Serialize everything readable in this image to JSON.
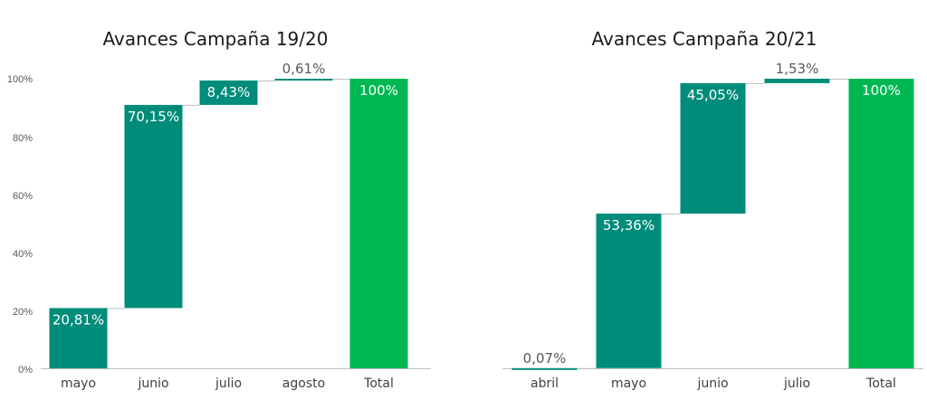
{
  "colors": {
    "bar": "#008C7A",
    "total": "#00B852",
    "axis": "#bfbfbf",
    "connector": "#bfbfbf",
    "label_dark": "#595959",
    "label_light": "#ffffff"
  },
  "chart_data": [
    {
      "type": "waterfall",
      "title": "Avances Campaña 19/20",
      "categories": [
        "mayo",
        "junio",
        "julio",
        "agosto",
        "Total"
      ],
      "values": [
        20.81,
        70.15,
        8.43,
        0.61,
        100
      ],
      "labels": [
        "20,81%",
        "70,15%",
        "8,43%",
        "0,61%",
        "100%"
      ],
      "is_total": [
        false,
        false,
        false,
        false,
        true
      ],
      "y_ticks": [
        "0%",
        "20%",
        "40%",
        "60%",
        "80%",
        "100%"
      ],
      "ylim": [
        0,
        100
      ],
      "grid": false
    },
    {
      "type": "waterfall",
      "title": "Avances Campaña 20/21",
      "categories": [
        "abril",
        "mayo",
        "junio",
        "julio",
        "Total"
      ],
      "values": [
        0.07,
        53.36,
        45.05,
        1.53,
        100
      ],
      "labels": [
        "0,07%",
        "53,36%",
        "45,05%",
        "1,53%",
        "100%"
      ],
      "is_total": [
        false,
        false,
        false,
        false,
        true
      ],
      "ylim": [
        0,
        100
      ],
      "grid": false
    }
  ]
}
